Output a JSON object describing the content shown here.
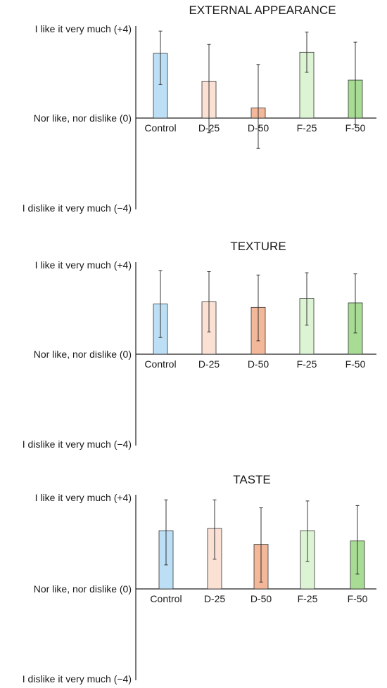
{
  "chart_data": [
    {
      "type": "bar",
      "title": "EXTERNAL APPEARANCE",
      "categories": [
        "Control",
        "D-25",
        "D-50",
        "F-25",
        "F-50"
      ],
      "values": [
        2.9,
        1.65,
        0.45,
        2.95,
        1.7
      ],
      "error_low": [
        1.5,
        -0.65,
        -1.35,
        2.05,
        -0.3
      ],
      "error_high": [
        3.9,
        3.3,
        2.4,
        3.85,
        3.4
      ],
      "ylim": [
        -4,
        4
      ],
      "yticks": [
        {
          "value": 4,
          "label": "I like it very much (+4)"
        },
        {
          "value": 0,
          "label": "Nor like, nor dislike (0)"
        },
        {
          "value": -4,
          "label": "I dislike it very much (−4)"
        }
      ],
      "colors": [
        "#bcdff5",
        "#fae1d4",
        "#f3b79a",
        "#dcf4d4",
        "#a8dc94"
      ],
      "xlabel": "",
      "ylabel": "",
      "grid": false
    },
    {
      "type": "bar",
      "title": "TEXTURE",
      "categories": [
        "Control",
        "D-25",
        "D-50",
        "F-25",
        "F-50"
      ],
      "values": [
        2.25,
        2.35,
        2.1,
        2.5,
        2.3
      ],
      "error_low": [
        0.75,
        1.0,
        0.6,
        1.3,
        0.95
      ],
      "error_high": [
        3.75,
        3.7,
        3.55,
        3.65,
        3.6
      ],
      "ylim": [
        -4,
        4
      ],
      "yticks": [
        {
          "value": 4,
          "label": "I like it very much (+4)"
        },
        {
          "value": 0,
          "label": "Nor like, nor dislike (0)"
        },
        {
          "value": -4,
          "label": "I dislike it very much (−4)"
        }
      ],
      "colors": [
        "#bcdff5",
        "#fae1d4",
        "#f3b79a",
        "#dcf4d4",
        "#a8dc94"
      ],
      "xlabel": "",
      "ylabel": "",
      "grid": false
    },
    {
      "type": "bar",
      "title": "TASTE",
      "categories": [
        "Control",
        "D-25",
        "D-50",
        "F-25",
        "F-50"
      ],
      "values": [
        2.55,
        2.65,
        1.95,
        2.55,
        2.1
      ],
      "error_low": [
        1.05,
        1.3,
        0.3,
        1.2,
        0.65
      ],
      "error_high": [
        3.9,
        3.9,
        3.55,
        3.85,
        3.65
      ],
      "ylim": [
        -4,
        4
      ],
      "yticks": [
        {
          "value": 4,
          "label": "I like it very much (+4)"
        },
        {
          "value": 0,
          "label": "Nor like, nor dislike (0)"
        },
        {
          "value": -4,
          "label": "I dislike it very much (−4)"
        }
      ],
      "colors": [
        "#bcdff5",
        "#fae1d4",
        "#f3b79a",
        "#dcf4d4",
        "#a8dc94"
      ],
      "xlabel": "",
      "ylabel": "",
      "grid": false
    }
  ]
}
